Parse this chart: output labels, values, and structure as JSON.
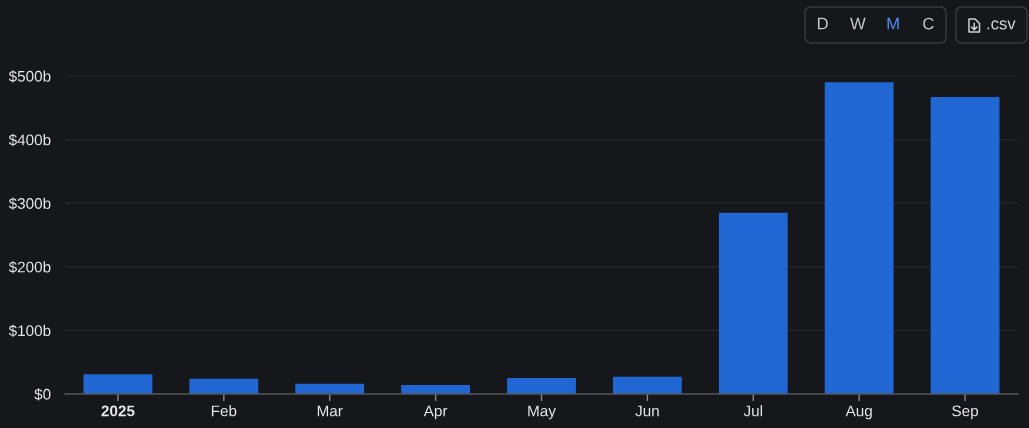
{
  "chart_data": {
    "type": "bar",
    "categories": [
      "2025",
      "Feb",
      "Mar",
      "Apr",
      "May",
      "Jun",
      "Jul",
      "Aug",
      "Sep"
    ],
    "values": [
      31,
      24,
      16,
      14,
      25,
      27,
      285,
      490,
      467
    ],
    "color": "#2167d4",
    "ylim": [
      0,
      500
    ],
    "yticks": [
      {
        "value": 0,
        "label": "$0"
      },
      {
        "value": 100,
        "label": "$100b"
      },
      {
        "value": 200,
        "label": "$200b"
      },
      {
        "value": 300,
        "label": "$300b"
      },
      {
        "value": 400,
        "label": "$400b"
      },
      {
        "value": 500,
        "label": "$500b"
      }
    ],
    "grid": "y",
    "annotations": [
      "D",
      "W",
      "M",
      "C",
      ".csv"
    ]
  }
}
